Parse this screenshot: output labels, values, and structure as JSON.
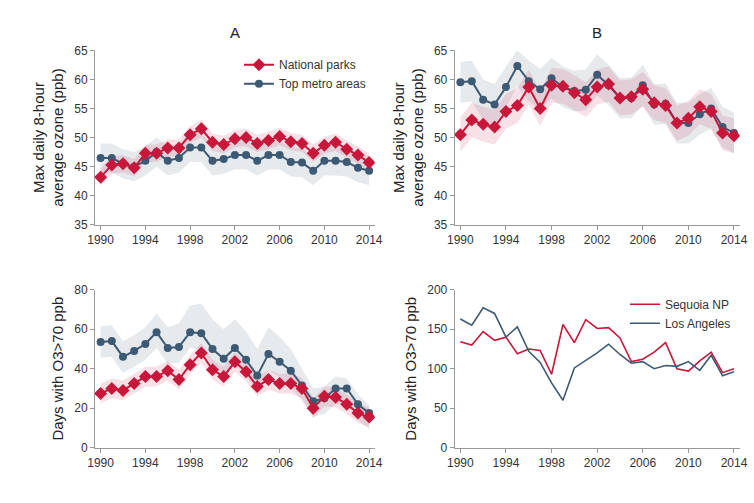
{
  "chart_data": [
    {
      "type": "line",
      "title": "A",
      "ylabel": "Max daily 8-hour\naverage ozone (ppb)",
      "x": [
        1990,
        1991,
        1992,
        1993,
        1994,
        1995,
        1996,
        1997,
        1998,
        1999,
        2000,
        2001,
        2002,
        2003,
        2004,
        2005,
        2006,
        2007,
        2008,
        2009,
        2010,
        2011,
        2012,
        2013,
        2014
      ],
      "xlim": [
        1989.5,
        2014.5
      ],
      "xticks": [
        1990,
        1994,
        1998,
        2002,
        2006,
        2010,
        2014
      ],
      "ylim": [
        35,
        65
      ],
      "yticks": [
        35,
        40,
        45,
        50,
        55,
        60,
        65
      ],
      "grid": false,
      "legend": "upper right",
      "series": [
        {
          "name": "Top metro areas",
          "color": "#3d5a74",
          "marker": "circle",
          "values": [
            46.5,
            46.5,
            45.5,
            45,
            46,
            47.5,
            46,
            46.5,
            48.3,
            48.3,
            46,
            46.3,
            47,
            47,
            46,
            47,
            47,
            45.8,
            45.7,
            44.3,
            46,
            46,
            45.8,
            44.8,
            44.3
          ],
          "lower": [
            44,
            44,
            43,
            42.5,
            43.5,
            45,
            43.5,
            44,
            45.8,
            45.8,
            43.5,
            43.8,
            44.5,
            44.5,
            43.5,
            44.5,
            44.5,
            43.3,
            43.2,
            41.8,
            43.5,
            43.5,
            43.3,
            42.3,
            41.8
          ],
          "upper": [
            49,
            49,
            48,
            47.5,
            48.5,
            50,
            48.5,
            49,
            50.8,
            50.8,
            48.5,
            48.8,
            49.5,
            49.5,
            48.5,
            49.5,
            49.5,
            48.3,
            48.2,
            46.8,
            48.5,
            48.5,
            48.3,
            47.3,
            46.8
          ]
        },
        {
          "name": "National parks",
          "color": "#c8173a",
          "marker": "diamond",
          "values": [
            43.2,
            45.3,
            45.5,
            44.8,
            47.3,
            47.3,
            48.2,
            48.2,
            50.5,
            51.5,
            49.2,
            48.8,
            49.8,
            50,
            49,
            49.5,
            50.2,
            49.3,
            49,
            47.3,
            48.7,
            49.2,
            48,
            47,
            45.7
          ],
          "lower": [
            41.7,
            43.8,
            44,
            43.3,
            45.8,
            45.8,
            46.7,
            46.7,
            49,
            50,
            47.7,
            47.3,
            48.3,
            48.5,
            47.5,
            48,
            48.7,
            47.8,
            47.5,
            45.8,
            47.2,
            47.7,
            46.5,
            45.5,
            44.2
          ],
          "upper": [
            44.7,
            46.8,
            47,
            46.3,
            48.8,
            48.8,
            49.7,
            49.7,
            52,
            53,
            50.7,
            50.3,
            51.3,
            51.5,
            50.5,
            51,
            51.7,
            50.8,
            50.5,
            48.8,
            50.2,
            50.7,
            49.5,
            48.5,
            47.2
          ]
        }
      ]
    },
    {
      "type": "line",
      "title": "B",
      "ylabel": "Max daily 8-hour\naverage ozone (ppb)",
      "x": [
        1990,
        1991,
        1992,
        1993,
        1994,
        1995,
        1996,
        1997,
        1998,
        1999,
        2000,
        2001,
        2002,
        2003,
        2004,
        2005,
        2006,
        2007,
        2008,
        2009,
        2010,
        2011,
        2012,
        2013,
        2014
      ],
      "xlim": [
        1989.5,
        2014.5
      ],
      "xticks": [
        1990,
        1994,
        1998,
        2002,
        2006,
        2010,
        2014
      ],
      "ylim": [
        35,
        65
      ],
      "yticks": [
        35,
        40,
        45,
        50,
        55,
        60,
        65
      ],
      "grid": false,
      "legend": "none",
      "series": [
        {
          "name": "Top metro areas",
          "color": "#3d5a74",
          "marker": "circle",
          "values": [
            59.5,
            59.7,
            56.5,
            55.7,
            58.7,
            62.3,
            59.7,
            58.3,
            60.2,
            58.7,
            58,
            58.2,
            60.8,
            59,
            56.8,
            56.8,
            59,
            55.7,
            55.8,
            52.5,
            52.5,
            54,
            55,
            51.8,
            50.8
          ],
          "lower": [
            56,
            56.2,
            53,
            52.2,
            55.2,
            58.8,
            56.2,
            54.8,
            56.7,
            55.2,
            54.5,
            54.7,
            57.3,
            55.5,
            53.3,
            53.3,
            55.5,
            52.2,
            52.3,
            49,
            49,
            50.5,
            51.5,
            48.3,
            47.3
          ],
          "upper": [
            63,
            63.2,
            60,
            59.2,
            62.2,
            65,
            63.2,
            61.8,
            63.7,
            62.2,
            61.5,
            61.7,
            64.3,
            62.5,
            60.3,
            60.3,
            62.5,
            59.2,
            59.3,
            56,
            56,
            57.5,
            58.5,
            55.3,
            54.3
          ]
        },
        {
          "name": "National parks",
          "color": "#c8173a",
          "marker": "diamond",
          "values": [
            50.5,
            53,
            52.3,
            51.8,
            54.5,
            55.5,
            58.7,
            55,
            59,
            58.8,
            57.7,
            56.5,
            58.7,
            59.2,
            56.8,
            57,
            58.3,
            56,
            55.5,
            52.5,
            53.3,
            55.3,
            54.5,
            50.8,
            50.3
          ],
          "lower": [
            47.5,
            50,
            49.3,
            48.8,
            51.5,
            52.5,
            55.7,
            52,
            56,
            55.8,
            54.7,
            53.5,
            55.7,
            56.2,
            53.8,
            54,
            55.3,
            53,
            52.5,
            49.5,
            50.3,
            52.3,
            51.5,
            47.8,
            47.3
          ],
          "upper": [
            53.5,
            56,
            55.3,
            54.8,
            57.5,
            58.5,
            61.7,
            58,
            62,
            61.8,
            60.7,
            59.5,
            61.7,
            62.2,
            59.8,
            60,
            61.3,
            59,
            58.5,
            55.5,
            56.3,
            58.3,
            57.5,
            53.8,
            53.3
          ]
        }
      ]
    },
    {
      "type": "line",
      "ylabel": "Days with O3>70 ppb",
      "x": [
        1990,
        1991,
        1992,
        1993,
        1994,
        1995,
        1996,
        1997,
        1998,
        1999,
        2000,
        2001,
        2002,
        2003,
        2004,
        2005,
        2006,
        2007,
        2008,
        2009,
        2010,
        2011,
        2012,
        2013,
        2014
      ],
      "xlim": [
        1989.5,
        2014.5
      ],
      "xticks": [
        1990,
        1994,
        1998,
        2002,
        2006,
        2010,
        2014
      ],
      "ylim": [
        0,
        80
      ],
      "yticks": [
        0,
        20,
        40,
        60,
        80
      ],
      "grid": false,
      "legend": "none",
      "series": [
        {
          "name": "Top metro areas",
          "color": "#3d5a74",
          "marker": "circle",
          "values": [
            53.5,
            54,
            46,
            49,
            52.5,
            58.5,
            50.5,
            51,
            58.5,
            58,
            50,
            45,
            50.5,
            44.5,
            36.5,
            47.5,
            43.5,
            39,
            31.5,
            23.5,
            25,
            30,
            30,
            22,
            17.5
          ],
          "lower": [
            45.5,
            46,
            38,
            41,
            44.5,
            50.5,
            42.5,
            43,
            50.5,
            50,
            42,
            37,
            42.5,
            36.5,
            28.5,
            39.5,
            35.5,
            31,
            23.5,
            15.5,
            17,
            22,
            22,
            14,
            9.5
          ],
          "upper": [
            61.5,
            62,
            54,
            57,
            61,
            68,
            61,
            63,
            72,
            73,
            65,
            60,
            65,
            59,
            50,
            61,
            56,
            50,
            40,
            30,
            31,
            36,
            35,
            27,
            21.5
          ]
        },
        {
          "name": "National parks",
          "color": "#c8173a",
          "marker": "diamond",
          "values": [
            27.5,
            30,
            29,
            32.5,
            36,
            36,
            39,
            34.5,
            42,
            48,
            39.5,
            36,
            43.5,
            38.5,
            31,
            34.5,
            32.5,
            32.5,
            30,
            20,
            26,
            25.5,
            22,
            17.5,
            15.5
          ],
          "lower": [
            22.5,
            25,
            24,
            27.5,
            31,
            31,
            34,
            29.5,
            37,
            43,
            34.5,
            31,
            38.5,
            33.5,
            26,
            29.5,
            27.5,
            27.5,
            25,
            15,
            21,
            20.5,
            17,
            12.5,
            10.5
          ],
          "upper": [
            32.5,
            35,
            34,
            37.5,
            41,
            41,
            44,
            39.5,
            47,
            53,
            44.5,
            41,
            48.5,
            43.5,
            36,
            39.5,
            37.5,
            37.5,
            35,
            25,
            31,
            30.5,
            27,
            22.5,
            20.5
          ]
        }
      ]
    },
    {
      "type": "line",
      "ylabel": "Days with O3>70 ppb",
      "x": [
        1990,
        1991,
        1992,
        1993,
        1994,
        1995,
        1996,
        1997,
        1998,
        1999,
        2000,
        2001,
        2002,
        2003,
        2004,
        2005,
        2006,
        2007,
        2008,
        2009,
        2010,
        2011,
        2012,
        2013,
        2014
      ],
      "xlim": [
        1989.5,
        2014.5
      ],
      "xticks": [
        1990,
        1994,
        1998,
        2002,
        2006,
        2010,
        2014
      ],
      "ylim": [
        0,
        200
      ],
      "yticks": [
        0,
        50,
        100,
        150,
        200
      ],
      "grid": false,
      "legend": "upper right",
      "series": [
        {
          "name": "Sequoia NP",
          "color": "#c8173a",
          "marker": "none",
          "values": [
            134,
            130,
            147,
            136,
            140,
            119,
            125,
            123,
            93,
            156,
            133,
            162,
            151,
            152,
            139,
            109,
            112,
            121,
            133,
            100,
            97,
            110,
            121,
            95,
            100
          ]
        },
        {
          "name": "Los Angeles",
          "color": "#3d5a74",
          "marker": "none",
          "values": [
            163,
            155,
            177,
            170,
            140,
            153,
            122,
            108,
            82,
            60,
            101,
            110,
            120,
            131,
            118,
            107,
            109,
            100,
            104,
            103,
            109,
            98,
            117,
            91,
            96
          ]
        }
      ]
    }
  ]
}
